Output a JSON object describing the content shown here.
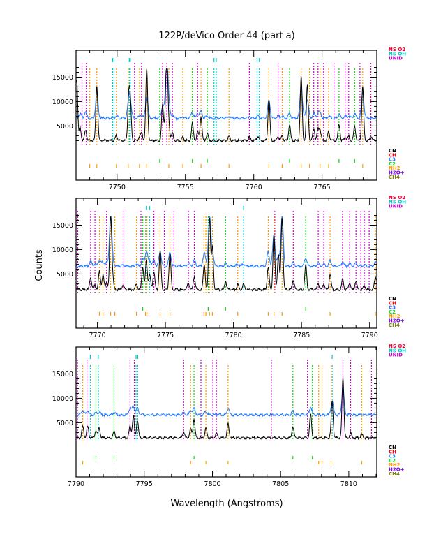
{
  "title": "122P/deVico Order 44 (part a)",
  "xlabel": "Wavelength (Angstroms)",
  "ylabel": "Counts",
  "legend_top": [
    {
      "label": "NS O2",
      "color": "#ff0033"
    },
    {
      "label": "NS OH",
      "color": "#00cccc"
    },
    {
      "label": "UNID",
      "color": "#cc00cc"
    }
  ],
  "legend_bottom": [
    {
      "label": "CN",
      "color": "#000000"
    },
    {
      "label": "CH",
      "color": "#ff0000"
    },
    {
      "label": "C3",
      "color": "#1e78ff"
    },
    {
      "label": "C2",
      "color": "#00dd00"
    },
    {
      "label": "NH2",
      "color": "#ff9900"
    },
    {
      "label": "H2O+",
      "color": "#8800ff"
    },
    {
      "label": "CH4",
      "color": "#808000"
    }
  ],
  "chart_data": [
    {
      "type": "line",
      "xlim": [
        7747.0,
        7769.0
      ],
      "ylim": [
        -6100,
        20500
      ],
      "xticks": [
        7750,
        7755,
        7760,
        7765
      ],
      "yticks": [
        5000,
        10000,
        15000
      ],
      "series": [
        {
          "color": "#000000",
          "baseline": 2000,
          "peaks": [
            [
              7747.05,
              14500
            ],
            [
              7747.3,
              4600
            ],
            [
              7747.7,
              4200
            ],
            [
              7748.52,
              13300
            ],
            [
              7749.95,
              3000
            ],
            [
              7750.85,
              10500
            ],
            [
              7750.97,
              9500
            ],
            [
              7751.64,
              2800
            ],
            [
              7751.8,
              3500
            ],
            [
              7752.17,
              16700
            ],
            [
              7753.33,
              9300
            ],
            [
              7753.55,
              7000
            ],
            [
              7753.65,
              16700
            ],
            [
              7753.79,
              5000
            ],
            [
              7754.05,
              3500
            ],
            [
              7754.81,
              2700
            ],
            [
              7755.51,
              5500
            ],
            [
              7755.9,
              3800
            ],
            [
              7756.14,
              6900
            ],
            [
              7756.6,
              3400
            ],
            [
              7758.19,
              2800
            ],
            [
              7759.68,
              2700
            ],
            [
              7760.3,
              2900
            ],
            [
              7761.11,
              10500
            ],
            [
              7761.78,
              2900
            ],
            [
              7762.08,
              3000
            ],
            [
              7762.62,
              5200
            ],
            [
              7763.47,
              15200
            ],
            [
              7763.92,
              13300
            ],
            [
              7764.39,
              4600
            ],
            [
              7764.7,
              4200
            ],
            [
              7764.85,
              4200
            ],
            [
              7765.48,
              3800
            ],
            [
              7766.24,
              5400
            ],
            [
              7766.69,
              2800
            ],
            [
              7766.95,
              2900
            ],
            [
              7767.38,
              5000
            ],
            [
              7767.97,
              13000
            ],
            [
              7768.6,
              2800
            ]
          ]
        },
        {
          "color": "#1e78ff",
          "baseline": 6600,
          "peaks": [
            [
              7747.3,
              7600
            ],
            [
              7747.7,
              7900
            ],
            [
              7748.52,
              11800
            ],
            [
              7749.95,
              7100
            ],
            [
              7750.85,
              10000
            ],
            [
              7750.97,
              9500
            ],
            [
              7751.64,
              6900
            ],
            [
              7751.8,
              7100
            ],
            [
              7752.17,
              11000
            ],
            [
              7753.33,
              9000
            ],
            [
              7753.55,
              8500
            ],
            [
              7753.65,
              16700
            ],
            [
              7753.79,
              8500
            ],
            [
              7754.05,
              7300
            ],
            [
              7754.81,
              6900
            ],
            [
              7755.51,
              7800
            ],
            [
              7755.9,
              7400
            ],
            [
              7756.14,
              8000
            ],
            [
              7756.6,
              7000
            ],
            [
              7758.19,
              6900
            ],
            [
              7759.68,
              6900
            ],
            [
              7760.3,
              7000
            ],
            [
              7761.11,
              10300
            ],
            [
              7761.78,
              7000
            ],
            [
              7762.08,
              7000
            ],
            [
              7762.62,
              7600
            ],
            [
              7763.47,
              13200
            ],
            [
              7763.92,
              10500
            ],
            [
              7764.39,
              7600
            ],
            [
              7764.7,
              7500
            ],
            [
              7764.85,
              7600
            ],
            [
              7765.48,
              7000
            ],
            [
              7766.24,
              7400
            ],
            [
              7766.69,
              7000
            ],
            [
              7766.95,
              7000
            ],
            [
              7767.38,
              7500
            ],
            [
              7767.97,
              11800
            ]
          ]
        }
      ],
      "line_ids": {
        "unid": [
          7747.44,
          7747.75,
          7751.28,
          7751.79,
          7753.33,
          7753.64,
          7754.05,
          7755.89,
          7759.68,
          7761.78,
          7764.39,
          7764.7,
          7765.11,
          7765.87,
          7766.69,
          7766.95,
          7767.77,
          7768.57
        ],
        "nh2": [
          7748.0,
          7748.52,
          7749.95,
          7750.82,
          7751.64,
          7752.17,
          7753.79,
          7754.81,
          7756.14,
          7758.19,
          7761.11,
          7762.08,
          7763.47,
          7764.08,
          7764.85,
          7765.48,
          7767.97
        ],
        "c2": [
          7753.12,
          7755.51,
          7756.6,
          7762.62,
          7766.24,
          7767.38
        ],
        "ns_oh": [
          7749.68,
          7749.78,
          7750.9,
          7750.97,
          7757.09,
          7757.26,
          7760.24,
          7760.41
        ]
      }
    },
    {
      "type": "line",
      "xlim": [
        7768.43,
        7790.53
      ],
      "ylim": [
        -6100,
        20500
      ],
      "xticks": [
        7770,
        7775,
        7780,
        7785,
        7790
      ],
      "yticks": [
        5000,
        10000,
        15000
      ],
      "series": [
        {
          "color": "#000000",
          "baseline": 1800,
          "peaks": [
            [
              7769.5,
              4300
            ],
            [
              7769.82,
              2700
            ],
            [
              7770.15,
              5600
            ],
            [
              7770.41,
              4800
            ],
            [
              7770.67,
              3500
            ],
            [
              7770.97,
              16700
            ],
            [
              7771.1,
              5000
            ],
            [
              7771.89,
              2800
            ],
            [
              7772.87,
              2900
            ],
            [
              7773.33,
              6400
            ],
            [
              7773.6,
              7700
            ],
            [
              7773.84,
              4800
            ],
            [
              7774.15,
              5500
            ],
            [
              7774.61,
              9800
            ],
            [
              7775.33,
              9200
            ],
            [
              7776.69,
              3200
            ],
            [
              7777.12,
              4500
            ],
            [
              7777.85,
              7000
            ],
            [
              7778.24,
              16700
            ],
            [
              7778.45,
              10500
            ],
            [
              7779.42,
              3500
            ],
            [
              7780.31,
              2900
            ],
            [
              7780.74,
              2900
            ],
            [
              7782.55,
              6500
            ],
            [
              7782.97,
              13000
            ],
            [
              7783.3,
              9000
            ],
            [
              7783.57,
              16700
            ],
            [
              7784.39,
              3800
            ],
            [
              7785.31,
              6800
            ],
            [
              7786.23,
              3100
            ],
            [
              7786.64,
              3000
            ],
            [
              7787.1,
              5000
            ],
            [
              7788.02,
              3900
            ],
            [
              7788.54,
              3300
            ],
            [
              7789.0,
              3600
            ],
            [
              7789.61,
              2700
            ],
            [
              7790.43,
              4500
            ]
          ]
        },
        {
          "color": "#1e78ff",
          "baseline": 6600,
          "peaks": [
            [
              7769.5,
              7500
            ],
            [
              7769.82,
              7000
            ],
            [
              7770.15,
              7800
            ],
            [
              7770.41,
              7500
            ],
            [
              7770.67,
              7200
            ],
            [
              7770.97,
              16700
            ],
            [
              7771.1,
              7600
            ],
            [
              7771.89,
              6900
            ],
            [
              7772.87,
              7000
            ],
            [
              7773.33,
              8000
            ],
            [
              7773.6,
              9700
            ],
            [
              7773.84,
              7700
            ],
            [
              7774.15,
              7700
            ],
            [
              7774.61,
              9500
            ],
            [
              7775.33,
              9300
            ],
            [
              7776.69,
              7200
            ],
            [
              7777.12,
              7800
            ],
            [
              7777.85,
              9300
            ],
            [
              7778.24,
              16700
            ],
            [
              7778.45,
              9500
            ],
            [
              7779.42,
              7100
            ],
            [
              7780.31,
              7000
            ],
            [
              7780.74,
              7000
            ],
            [
              7782.55,
              9500
            ],
            [
              7782.97,
              13000
            ],
            [
              7783.3,
              8500
            ],
            [
              7783.57,
              16700
            ],
            [
              7784.39,
              7300
            ],
            [
              7785.31,
              8300
            ],
            [
              7786.23,
              7200
            ],
            [
              7786.64,
              7000
            ],
            [
              7787.1,
              7700
            ],
            [
              7788.02,
              7400
            ],
            [
              7788.54,
              7100
            ],
            [
              7789.0,
              7300
            ],
            [
              7789.61,
              6900
            ],
            [
              7790.43,
              7400
            ]
          ]
        }
      ],
      "line_ids": {
        "unid": [
          7768.56,
          7769.5,
          7769.82,
          7770.67,
          7771.89,
          7773.2,
          7774.15,
          7774.92,
          7775.63,
          7776.69,
          7777.12,
          7783.04,
          7784.39,
          7786.23,
          7786.64,
          7788.02,
          7788.54,
          7789.0,
          7789.36,
          7789.61,
          7789.97
        ],
        "nh2": [
          7770.15,
          7770.41,
          7770.97,
          7771.28,
          7772.87,
          7773.53,
          7773.64,
          7774.61,
          7775.33,
          7777.83,
          7777.97,
          7778.24,
          7778.45,
          7780.31,
          7782.55,
          7782.97,
          7783.57,
          7787.1,
          7790.43
        ],
        "c2": [
          7773.33,
          7778.14,
          7779.42,
          7785.31
        ],
        "ns_oh": [
          7773.6,
          7773.84,
          7780.74
        ]
      }
    },
    {
      "type": "line",
      "xlim": [
        7790.0,
        7812.05
      ],
      "ylim": [
        -6100,
        20500
      ],
      "xticks": [
        7790,
        7795,
        7800,
        7805,
        7810
      ],
      "yticks": [
        5000,
        10000,
        15000
      ],
      "series": [
        {
          "color": "#000000",
          "baseline": 1900,
          "peaks": [
            [
              7790.49,
              4300
            ],
            [
              7790.85,
              4200
            ],
            [
              7791.46,
              3500
            ],
            [
              7791.7,
              3900
            ],
            [
              7792.79,
              3200
            ],
            [
              7793.96,
              4300
            ],
            [
              7794.2,
              6400
            ],
            [
              7794.5,
              5600
            ],
            [
              7797.89,
              3200
            ],
            [
              7798.4,
              3800
            ],
            [
              7798.65,
              5800
            ],
            [
              7799.52,
              3900
            ],
            [
              7800.29,
              2900
            ],
            [
              7801.15,
              4800
            ],
            [
              7805.9,
              4200
            ],
            [
              7807.2,
              6600
            ],
            [
              7808.78,
              9300
            ],
            [
              7809.57,
              14300
            ],
            [
              7810.13,
              2900
            ],
            [
              7810.95,
              2600
            ]
          ]
        },
        {
          "color": "#1e78ff",
          "baseline": 6600,
          "peaks": [
            [
              7790.49,
              7500
            ],
            [
              7790.85,
              7500
            ],
            [
              7791.46,
              7000
            ],
            [
              7791.7,
              7200
            ],
            [
              7792.79,
              7100
            ],
            [
              7793.96,
              7900
            ],
            [
              7794.2,
              8300
            ],
            [
              7794.5,
              8000
            ],
            [
              7797.89,
              7000
            ],
            [
              7798.4,
              7400
            ],
            [
              7798.65,
              7900
            ],
            [
              7799.52,
              7300
            ],
            [
              7800.29,
              6800
            ],
            [
              7801.15,
              7900
            ],
            [
              7805.9,
              7300
            ],
            [
              7807.2,
              8200
            ],
            [
              7808.78,
              9300
            ],
            [
              7809.57,
              11800
            ],
            [
              7810.13,
              6900
            ],
            [
              7810.95,
              6700
            ]
          ]
        }
      ],
      "line_ids": {
        "unid": [
          7790.1,
          7790.8,
          7793.96,
          7794.27,
          7797.89,
          7799.16,
          7800.03,
          7800.29,
          7804.32,
          7806.97,
          7809.57,
          7810.13,
          7811.66
        ],
        "nh2": [
          7790.49,
          7798.4,
          7799.52,
          7801.15,
          7807.79,
          7808.04,
          7808.7,
          7810.95
        ],
        "c2": [
          7791.46,
          7792.79,
          7798.65,
          7805.9,
          7807.33
        ],
        "ns_oh": [
          7791.05,
          7791.63,
          7794.4,
          7794.52,
          7808.78
        ]
      }
    }
  ]
}
